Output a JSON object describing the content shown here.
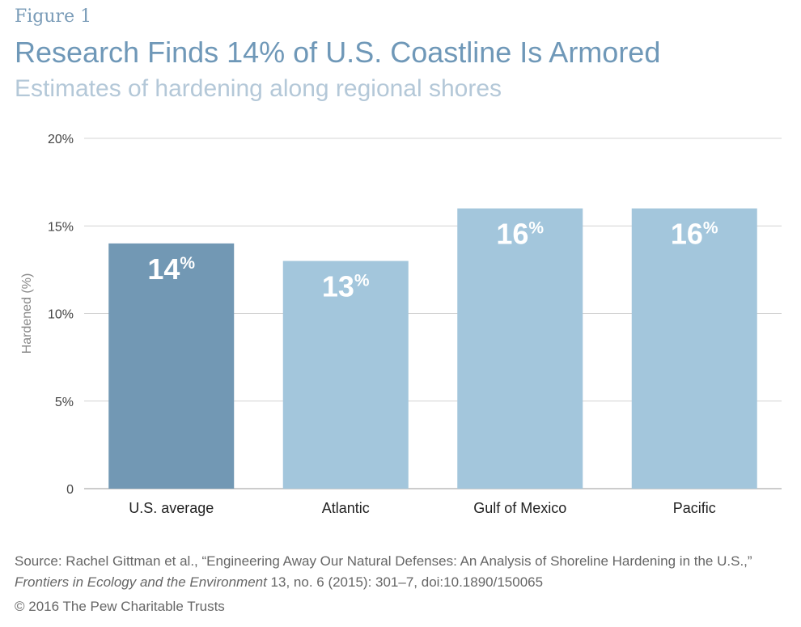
{
  "figure_label": "Figure 1",
  "title": "Research Finds 14% of U.S. Coastline Is Armored",
  "subtitle": "Estimates of hardening along regional shores",
  "source": {
    "line1": "Source: Rachel Gittman et al., “Engineering Away Our Natural Defenses: An Analysis of Shoreline Hardening in the U.S.,”",
    "journal": "Frontiers in Ecology and the Environment",
    "rest": " 13, no. 6 (2015): 301–7, doi:10.1890/150065"
  },
  "copyright": "© 2016 The Pew Charitable Trusts",
  "colors": {
    "highlight_bar": "#7298b4",
    "bar": "#a3c6dc",
    "grid": "#d4d4d4",
    "axis": "#999999"
  },
  "chart_data": {
    "type": "bar",
    "categories": [
      "U.S. average",
      "Atlantic",
      "Gulf of Mexico",
      "Pacific"
    ],
    "values": [
      14,
      13,
      16,
      16
    ],
    "data_labels": [
      "14%",
      "13%",
      "16%",
      "16%"
    ],
    "highlight_index": 0,
    "ylabel": "Hardened (%)",
    "ylim": [
      0,
      20
    ],
    "yticks": [
      0,
      5,
      10,
      15,
      20
    ],
    "ytick_labels": [
      "0",
      "5%",
      "10%",
      "15%",
      "20%"
    ],
    "grid": true
  }
}
